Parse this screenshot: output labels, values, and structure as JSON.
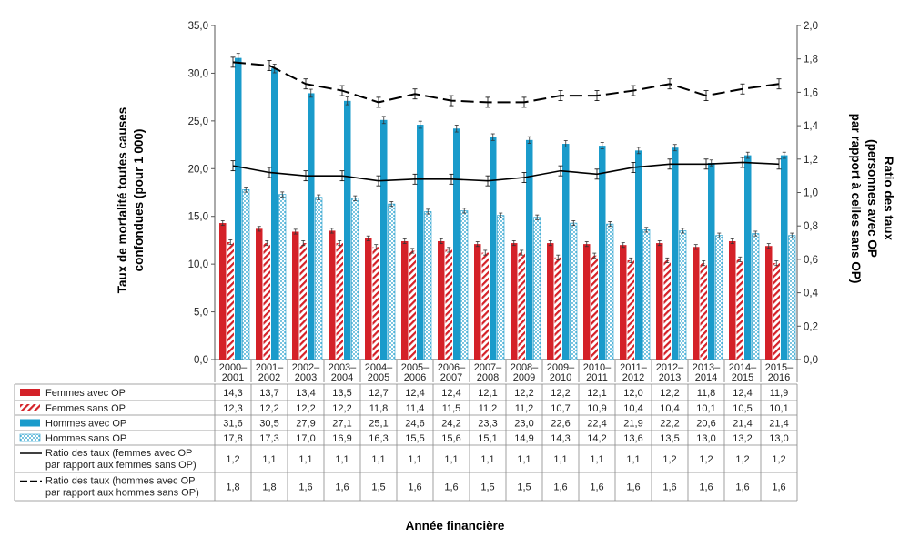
{
  "chart_data": {
    "type": "bar",
    "xlabel": "Année financière",
    "ylabel": "Taux de mortalité toutes causes confondues (pour 1 000)",
    "y2label_lines": [
      "Ratio des taux",
      "(personnes avec OP",
      "par rapport à celles sans OP)"
    ],
    "ylabel_lines": [
      "Taux de mortalité toutes causes",
      "confondues (pour 1 000)"
    ],
    "y2label": "Ratio des taux (personnes avec OP par rapport à celles sans OP)",
    "ylim": [
      0,
      35
    ],
    "y2lim": [
      0,
      2
    ],
    "yticks": [
      "0,0",
      "5,0",
      "10,0",
      "15,0",
      "20,0",
      "25,0",
      "30,0",
      "35,0"
    ],
    "y2ticks": [
      "0,0",
      "0,2",
      "0,4",
      "0,6",
      "0,8",
      "1,0",
      "1,2",
      "1,4",
      "1,6",
      "1,8",
      "2,0"
    ],
    "categories": [
      [
        "2000–",
        "2001"
      ],
      [
        "2001–",
        "2002"
      ],
      [
        "2002–",
        "2003"
      ],
      [
        "2003–",
        "2004"
      ],
      [
        "2004–",
        "2005"
      ],
      [
        "2005–",
        "2006"
      ],
      [
        "2006–",
        "2007"
      ],
      [
        "2007–",
        "2008"
      ],
      [
        "2008–",
        "2009"
      ],
      [
        "2009–",
        "2010"
      ],
      [
        "2010–",
        "2011"
      ],
      [
        "2011–",
        "2012"
      ],
      [
        "2012–",
        "2013"
      ],
      [
        "2013–",
        "2014"
      ],
      [
        "2014–",
        "2015"
      ],
      [
        "2015–",
        "2016"
      ]
    ],
    "series": [
      {
        "name": "Femmes avec OP",
        "kind": "bar",
        "style": "solid-red",
        "color": "#d42128",
        "values": [
          14.3,
          13.7,
          13.4,
          13.5,
          12.7,
          12.4,
          12.4,
          12.1,
          12.2,
          12.2,
          12.1,
          12.0,
          12.2,
          11.8,
          12.4,
          11.9
        ],
        "labels": [
          "14,3",
          "13,7",
          "13,4",
          "13,5",
          "12,7",
          "12,4",
          "12,4",
          "12,1",
          "12,2",
          "12,2",
          "12,1",
          "12,0",
          "12,2",
          "11,8",
          "12,4",
          "11,9"
        ]
      },
      {
        "name": "Femmes sans OP",
        "kind": "bar",
        "style": "hatched-red",
        "color": "#d42128",
        "values": [
          12.3,
          12.2,
          12.2,
          12.2,
          11.8,
          11.4,
          11.5,
          11.2,
          11.2,
          10.7,
          10.9,
          10.4,
          10.4,
          10.1,
          10.5,
          10.1
        ],
        "labels": [
          "12,3",
          "12,2",
          "12,2",
          "12,2",
          "11,8",
          "11,4",
          "11,5",
          "11,2",
          "11,2",
          "10,7",
          "10,9",
          "10,4",
          "10,4",
          "10,1",
          "10,5",
          "10,1"
        ]
      },
      {
        "name": "Hommes avec OP",
        "kind": "bar",
        "style": "solid-blue",
        "color": "#1a9bcb",
        "values": [
          31.6,
          30.5,
          27.9,
          27.1,
          25.1,
          24.6,
          24.2,
          23.3,
          23.0,
          22.6,
          22.4,
          21.9,
          22.2,
          20.6,
          21.4,
          21.4
        ],
        "labels": [
          "31,6",
          "30,5",
          "27,9",
          "27,1",
          "25,1",
          "24,6",
          "24,2",
          "23,3",
          "23,0",
          "22,6",
          "22,4",
          "21,9",
          "22,2",
          "20,6",
          "21,4",
          "21,4"
        ]
      },
      {
        "name": "Hommes sans OP",
        "kind": "bar",
        "style": "dotted-blue",
        "color": "#1a9bcb",
        "values": [
          17.8,
          17.3,
          17.0,
          16.9,
          16.3,
          15.5,
          15.6,
          15.1,
          14.9,
          14.3,
          14.2,
          13.6,
          13.5,
          13.0,
          13.2,
          13.0
        ],
        "labels": [
          "17,8",
          "17,3",
          "17,0",
          "16,9",
          "16,3",
          "15,5",
          "15,6",
          "15,1",
          "14,9",
          "14,3",
          "14,2",
          "13,6",
          "13,5",
          "13,0",
          "13,2",
          "13,0"
        ]
      },
      {
        "name": "Ratio des taux (femmes avec OP par rapport aux femmes sans OP)",
        "name_lines": [
          "Ratio des taux (femmes avec OP",
          "par rapport aux femmes sans OP)"
        ],
        "kind": "line",
        "style": "solid",
        "axis": "right",
        "color": "#000000",
        "values": [
          1.16,
          1.12,
          1.1,
          1.1,
          1.07,
          1.08,
          1.08,
          1.07,
          1.09,
          1.13,
          1.11,
          1.15,
          1.17,
          1.17,
          1.18,
          1.17
        ],
        "labels": [
          "1,2",
          "1,1",
          "1,1",
          "1,1",
          "1,1",
          "1,1",
          "1,1",
          "1,1",
          "1,1",
          "1,1",
          "1,1",
          "1,1",
          "1,2",
          "1,2",
          "1,2",
          "1,2"
        ]
      },
      {
        "name": "Ratio des taux (hommes avec OP par rapport aux hommes sans OP)",
        "name_lines": [
          "Ratio des taux (hommes avec OP",
          "par rapport aux hommes sans OP)"
        ],
        "kind": "line",
        "style": "dashed",
        "axis": "right",
        "color": "#000000",
        "values": [
          1.78,
          1.76,
          1.65,
          1.61,
          1.54,
          1.59,
          1.55,
          1.54,
          1.54,
          1.58,
          1.58,
          1.61,
          1.65,
          1.58,
          1.62,
          1.65
        ],
        "labels": [
          "1,8",
          "1,8",
          "1,6",
          "1,6",
          "1,5",
          "1,6",
          "1,6",
          "1,5",
          "1,5",
          "1,6",
          "1,6",
          "1,6",
          "1,6",
          "1,6",
          "1,6",
          "1,6"
        ]
      }
    ],
    "error_bars": true,
    "grid": false,
    "legend": "table-left"
  }
}
